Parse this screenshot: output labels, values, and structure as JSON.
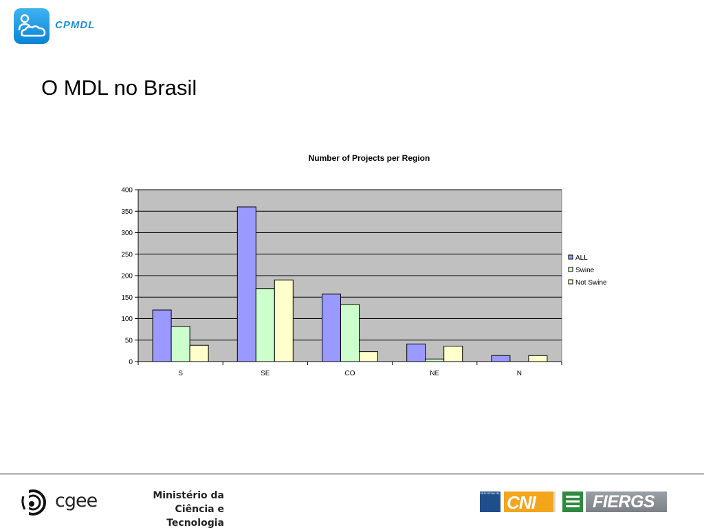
{
  "header": {
    "logo_text": "CPMDL",
    "slide_title": "O MDL no Brasil"
  },
  "chart_data": {
    "type": "bar",
    "title": "Number of Projects per Region",
    "xlabel": "",
    "ylabel": "",
    "categories": [
      "S",
      "SE",
      "CO",
      "NE",
      "N"
    ],
    "series": [
      {
        "name": "ALL",
        "values": [
          120,
          360,
          157,
          41,
          14
        ],
        "color": "#9999ff"
      },
      {
        "name": "Swine",
        "values": [
          82,
          170,
          133,
          6,
          0
        ],
        "color": "#ccffcc"
      },
      {
        "name": "Not Swine",
        "values": [
          38,
          190,
          23,
          36,
          14
        ],
        "color": "#ffffcc"
      }
    ],
    "ylim": [
      0,
      400
    ],
    "yticks": [
      0,
      50,
      100,
      150,
      200,
      250,
      300,
      350,
      400
    ],
    "grid": true,
    "plot_background": "#c0c0c0",
    "legend": "right"
  },
  "footer": {
    "cgee_label": "cgee",
    "ministry_line1": "Ministério da",
    "ministry_line2": "Ciência e Tecnologia",
    "sesi_label": "SESI SENAI IEL",
    "cni_label": "CNI",
    "fiergs_label": "FIERGS"
  }
}
